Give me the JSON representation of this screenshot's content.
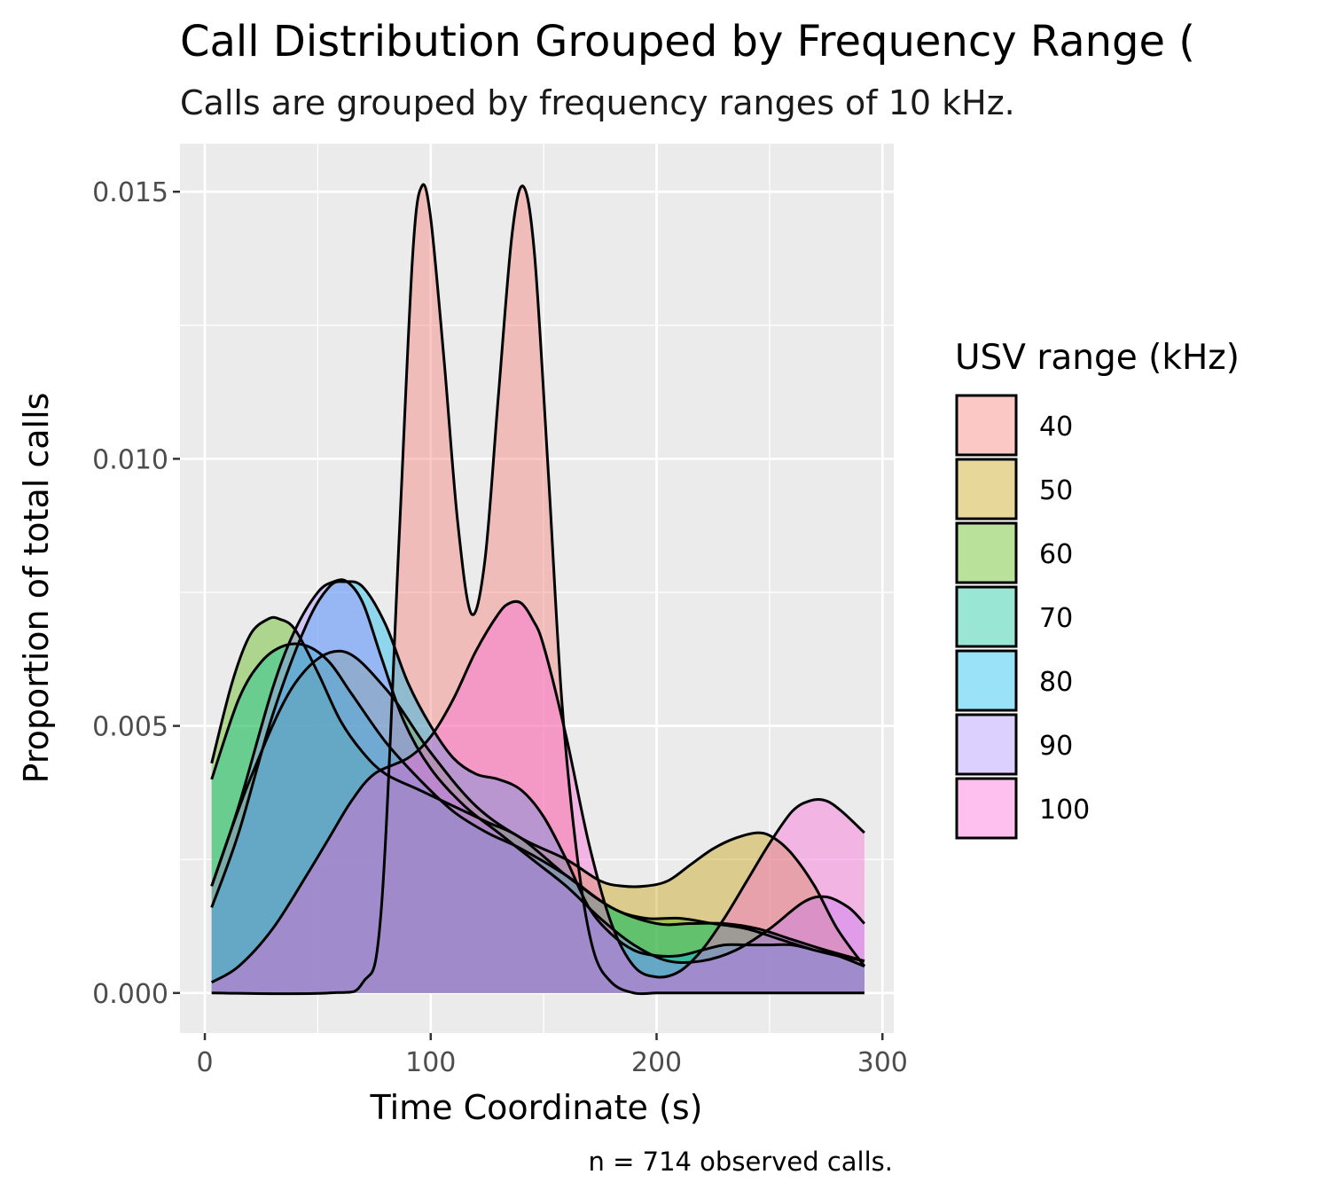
{
  "chart_data": {
    "type": "area",
    "title": "Call Distribution Grouped by Frequency Range (",
    "subtitle": "Calls are grouped by frequency ranges of 10 kHz.",
    "xlabel": "Time Coordinate (s)",
    "ylabel": "Proportion of total calls",
    "caption": "n = 714 observed calls.",
    "xlim": [
      -11,
      305
    ],
    "ylim": [
      -0.00075,
      0.0159
    ],
    "x_ticks": [
      0,
      100,
      200,
      300
    ],
    "x_tick_labels": [
      "0",
      "100",
      "200",
      "300"
    ],
    "y_ticks": [
      0.0,
      0.005,
      0.01,
      0.015
    ],
    "y_tick_labels": [
      "0.000",
      "0.005",
      "0.010",
      "0.015"
    ],
    "grid": true,
    "legend": {
      "title": "USV range (kHz)",
      "placement": "right"
    },
    "series": [
      {
        "name": "40",
        "color": "#F8766D",
        "x": [
          3,
          55,
          70,
          78,
          86,
          92,
          96,
          100,
          106,
          112,
          118,
          124,
          130,
          136,
          141,
          146,
          152,
          158,
          165,
          172,
          180,
          190,
          200,
          210,
          220,
          230,
          240,
          250,
          260,
          270,
          280,
          292
        ],
        "y": [
          0.0,
          0.0,
          0.0002,
          0.0015,
          0.0085,
          0.0138,
          0.0151,
          0.0145,
          0.0118,
          0.0088,
          0.0071,
          0.0081,
          0.0112,
          0.0142,
          0.0151,
          0.0138,
          0.0098,
          0.0055,
          0.0025,
          0.0008,
          0.0002,
          0.0,
          0.0,
          0.0,
          0.0,
          0.0,
          0.0,
          0.0,
          0.0,
          0.0,
          0.0,
          0.0
        ]
      },
      {
        "name": "50",
        "color": "#C49A00",
        "x": [
          3,
          20,
          40,
          60,
          80,
          100,
          120,
          140,
          160,
          175,
          185,
          195,
          205,
          215,
          225,
          235,
          245,
          252,
          260,
          270,
          280,
          292
        ],
        "y": [
          0.002,
          0.004,
          0.0058,
          0.0064,
          0.0057,
          0.0045,
          0.0035,
          0.0029,
          0.0025,
          0.0021,
          0.002,
          0.002,
          0.0021,
          0.0024,
          0.0027,
          0.0029,
          0.003,
          0.0029,
          0.0026,
          0.002,
          0.0012,
          0.0005
        ]
      },
      {
        "name": "60",
        "color": "#53B400",
        "x": [
          3,
          12,
          20,
          28,
          33,
          40,
          50,
          60,
          70,
          80,
          95,
          110,
          125,
          140,
          160,
          180,
          195,
          210,
          225,
          240,
          255,
          270,
          280,
          292
        ],
        "y": [
          0.0043,
          0.0058,
          0.0067,
          0.007,
          0.007,
          0.0068,
          0.006,
          0.0051,
          0.0045,
          0.0041,
          0.0038,
          0.0035,
          0.0032,
          0.0029,
          0.0022,
          0.0016,
          0.0014,
          0.0014,
          0.0013,
          0.0012,
          0.001,
          0.0008,
          0.0007,
          0.0006
        ]
      },
      {
        "name": "70",
        "color": "#00C094",
        "x": [
          3,
          15,
          25,
          35,
          45,
          55,
          65,
          80,
          95,
          110,
          125,
          140,
          160,
          180,
          200,
          215,
          230,
          245,
          260,
          275,
          292
        ],
        "y": [
          0.004,
          0.0055,
          0.0062,
          0.0065,
          0.0065,
          0.0062,
          0.0056,
          0.0047,
          0.004,
          0.0034,
          0.003,
          0.0027,
          0.0022,
          0.0016,
          0.0013,
          0.0013,
          0.0013,
          0.0012,
          0.001,
          0.0008,
          0.0006
        ]
      },
      {
        "name": "80",
        "color": "#00B6EB",
        "x": [
          3,
          15,
          30,
          45,
          55,
          62,
          70,
          80,
          90,
          100,
          110,
          120,
          130,
          140,
          150,
          160,
          170,
          180,
          190,
          200,
          210,
          220,
          230,
          240,
          250,
          260,
          270,
          280,
          292
        ],
        "y": [
          0.0016,
          0.003,
          0.0052,
          0.0069,
          0.0076,
          0.0077,
          0.0076,
          0.0069,
          0.0058,
          0.005,
          0.0044,
          0.0041,
          0.004,
          0.0038,
          0.0033,
          0.0025,
          0.0016,
          0.0011,
          0.0008,
          0.0007,
          0.0007,
          0.0008,
          0.0009,
          0.0009,
          0.0009,
          0.0009,
          0.0008,
          0.0007,
          0.0005
        ]
      },
      {
        "name": "90",
        "color": "#A58AFF",
        "x": [
          3,
          15,
          30,
          40,
          50,
          57,
          63,
          70,
          78,
          88,
          100,
          115,
          130,
          145,
          160,
          175,
          190,
          205,
          220,
          235,
          250,
          265,
          275,
          285,
          292
        ],
        "y": [
          0.002,
          0.0035,
          0.0057,
          0.0068,
          0.0075,
          0.0077,
          0.0077,
          0.0073,
          0.0063,
          0.0051,
          0.0042,
          0.0035,
          0.003,
          0.0025,
          0.002,
          0.0014,
          0.0009,
          0.0006,
          0.0006,
          0.0008,
          0.0012,
          0.0017,
          0.0018,
          0.0016,
          0.0013
        ]
      },
      {
        "name": "100",
        "color": "#FB61D7",
        "x": [
          3,
          15,
          30,
          45,
          55,
          65,
          75,
          90,
          100,
          110,
          120,
          130,
          135,
          140,
          145,
          150,
          160,
          170,
          180,
          190,
          200,
          210,
          220,
          230,
          240,
          250,
          260,
          268,
          275,
          282,
          292
        ],
        "y": [
          0.0002,
          0.0005,
          0.0012,
          0.0022,
          0.0029,
          0.0036,
          0.0041,
          0.0044,
          0.0048,
          0.0055,
          0.0064,
          0.0071,
          0.0073,
          0.0073,
          0.007,
          0.0065,
          0.0048,
          0.0028,
          0.0013,
          0.0005,
          0.0003,
          0.0004,
          0.0008,
          0.0014,
          0.0021,
          0.0028,
          0.0034,
          0.0036,
          0.0036,
          0.0034,
          0.003
        ]
      }
    ]
  }
}
